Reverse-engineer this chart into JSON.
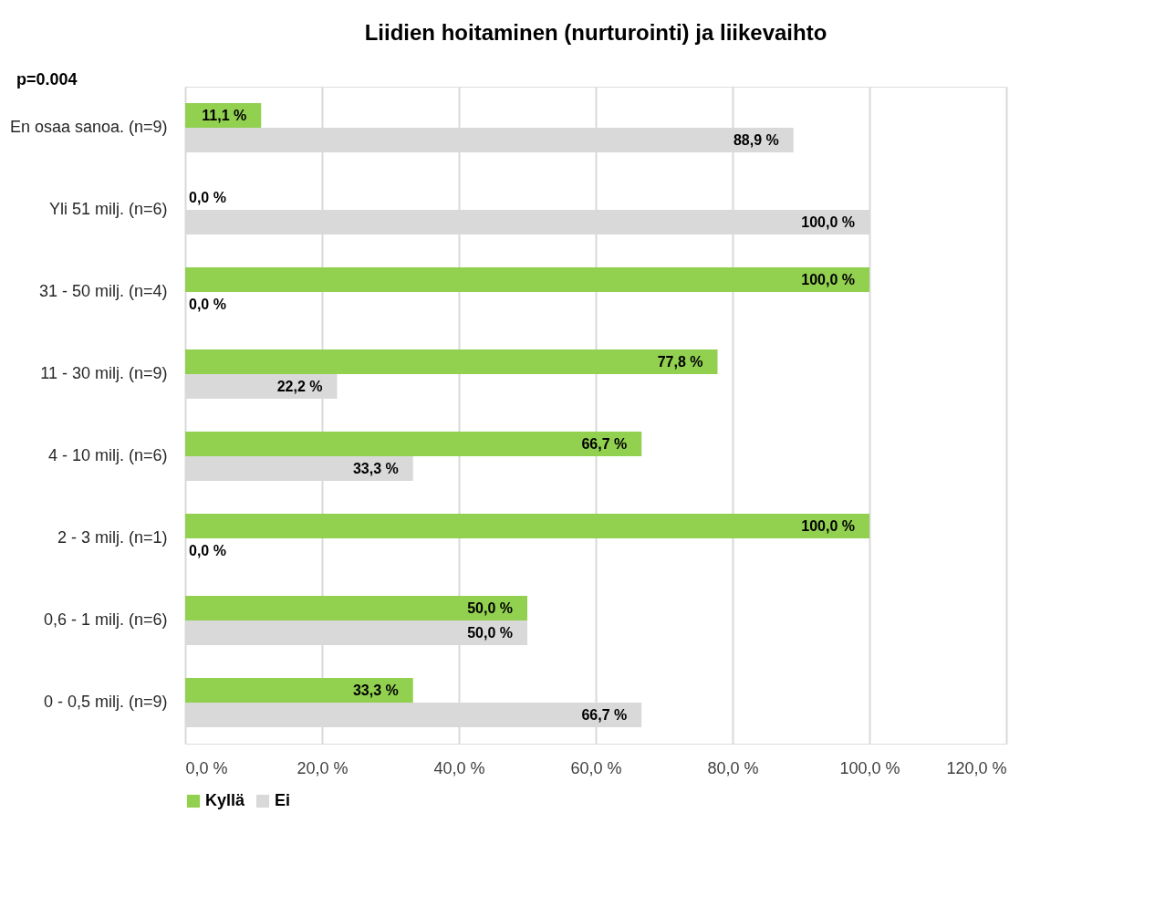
{
  "chart_data": {
    "type": "bar",
    "orientation": "horizontal",
    "title": "Liidien hoitaminen (nurturointi) ja liikevaihto",
    "annotations": [
      "p=0.004"
    ],
    "categories": [
      "En osaa sanoa. (n=9)",
      "Yli 51 milj. (n=6)",
      "31 - 50 milj. (n=4)",
      "11 - 30 milj. (n=9)",
      "4 - 10 milj. (n=6)",
      "2 - 3 milj. (n=1)",
      "0,6 - 1 milj. (n=6)",
      "0 - 0,5 milj. (n=9)"
    ],
    "series": [
      {
        "name": "Kyllä",
        "color": "#92d050",
        "values": [
          11.1,
          0.0,
          100.0,
          77.8,
          66.7,
          100.0,
          50.0,
          33.3
        ],
        "value_labels": [
          "11,1 %",
          "0,0 %",
          "100,0 %",
          "77,8 %",
          "66,7 %",
          "100,0 %",
          "50,0 %",
          "33,3 %"
        ]
      },
      {
        "name": "Ei",
        "color": "#d9d9d9",
        "values": [
          88.9,
          100.0,
          0.0,
          22.2,
          33.3,
          0.0,
          50.0,
          66.7
        ],
        "value_labels": [
          "88,9 %",
          "100,0 %",
          "0,0 %",
          "22,2 %",
          "33,3 %",
          "0,0 %",
          "50,0 %",
          "66,7 %"
        ]
      }
    ],
    "xlim": [
      0,
      120
    ],
    "xticks": [
      {
        "value": 0,
        "label": "0,0 %"
      },
      {
        "value": 20,
        "label": "20,0 %"
      },
      {
        "value": 40,
        "label": "40,0 %"
      },
      {
        "value": 60,
        "label": "60,0 %"
      },
      {
        "value": 80,
        "label": "80,0 %"
      },
      {
        "value": 100,
        "label": "100,0 %"
      },
      {
        "value": 120,
        "label": "120,0 %"
      }
    ],
    "grid": "x",
    "legend": "bottom"
  }
}
